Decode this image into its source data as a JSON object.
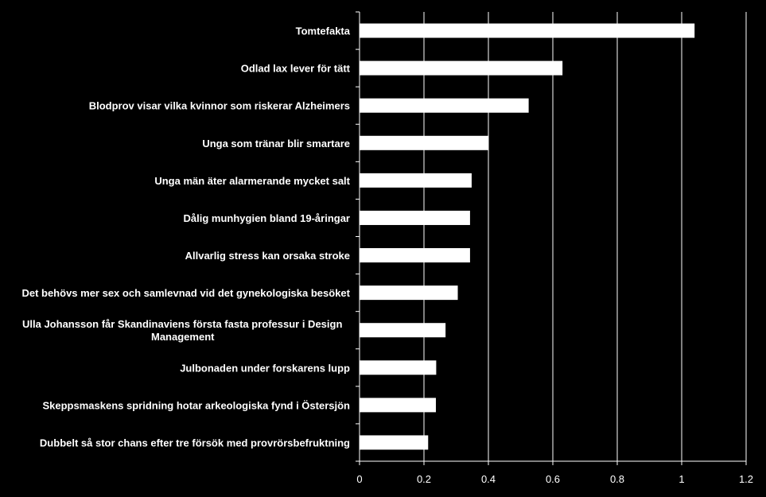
{
  "chart_data": {
    "type": "bar",
    "orientation": "horizontal",
    "categories": [
      "Tomtefakta",
      "Odlad lax lever för tätt",
      "Blodprov visar vilka kvinnor som riskerar Alzheimers",
      "Unga som tränar blir smartare",
      "Unga män äter alarmerande mycket salt",
      "Dålig munhygien bland 19-åringar",
      "Allvarlig stress kan orsaka stroke",
      "Det behövs mer sex och samlevnad vid det gynekologiska besöket",
      "Ulla Johansson får Skandinaviens första fasta professur i Design Management",
      "Julbonaden under forskarens lupp",
      "Skeppsmaskens spridning hotar arkeologiska fynd i Östersjön",
      "Dubbelt så stor chans efter tre försök med provrörsbefruktning"
    ],
    "values": [
      1.04,
      0.63,
      0.525,
      0.4,
      0.348,
      0.343,
      0.343,
      0.305,
      0.267,
      0.238,
      0.237,
      0.213
    ],
    "xlim": [
      0,
      1.2
    ],
    "xticks": [
      "0",
      "0.2",
      "0.4",
      "0.6",
      "0.8",
      "1",
      "1.2"
    ],
    "title": "",
    "xlabel": "",
    "ylabel": "",
    "grid": "vertical",
    "legend": "none",
    "colors": {
      "background": "#000000",
      "bar": "#ffffff",
      "grid": "#ffffff",
      "text": "#ffffff"
    }
  }
}
